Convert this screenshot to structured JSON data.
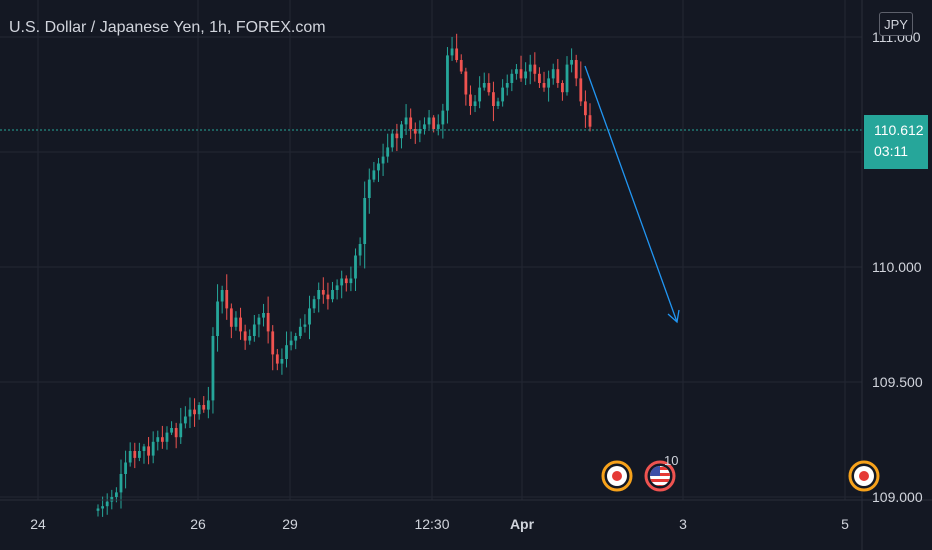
{
  "header": {
    "title": "U.S. Dollar / Japanese Yen, 1h, FOREX.com",
    "currency": "JPY"
  },
  "price_tag": {
    "price": "110.612",
    "countdown": "03:11"
  },
  "colors": {
    "background": "#141823",
    "grid": "#232733",
    "up": "#26a69a",
    "down": "#ef5350",
    "arrow": "#2196f3",
    "price_line": "#26a69a",
    "event_ring": "#f7a21b",
    "event_ring_us": "#ef5350"
  },
  "events": {
    "us_event_count": "10",
    "icons": [
      "japan-flag-icon",
      "us-flag-icon",
      "japan-flag-icon"
    ]
  },
  "chart_data": {
    "type": "candlestick",
    "title": "U.S. Dollar / Japanese Yen, 1h, FOREX.com",
    "currency": "JPY",
    "timeframe": "1h",
    "ylim": [
      108.95,
      111.12
    ],
    "yticks": [
      109.0,
      109.5,
      110.0,
      110.5,
      111.0
    ],
    "ytick_labels": [
      "109.000",
      "109.500",
      "110.000",
      "",
      "111.000"
    ],
    "xtick_labels": [
      "24",
      "26",
      "29",
      "12:30",
      "Apr",
      "3",
      "5"
    ],
    "last_price": 110.612,
    "grid": true,
    "closes": [
      108.95,
      108.96,
      108.98,
      109.0,
      109.02,
      109.1,
      109.15,
      109.2,
      109.17,
      109.2,
      109.22,
      109.18,
      109.24,
      109.26,
      109.24,
      109.28,
      109.3,
      109.26,
      109.32,
      109.35,
      109.38,
      109.36,
      109.4,
      109.38,
      109.42,
      109.7,
      109.85,
      109.9,
      109.82,
      109.74,
      109.78,
      109.72,
      109.68,
      109.7,
      109.75,
      109.78,
      109.8,
      109.72,
      109.62,
      109.58,
      109.6,
      109.66,
      109.68,
      109.7,
      109.74,
      109.75,
      109.82,
      109.86,
      109.9,
      109.88,
      109.86,
      109.9,
      109.92,
      109.95,
      109.93,
      109.95,
      110.05,
      110.1,
      110.3,
      110.38,
      110.42,
      110.45,
      110.48,
      110.52,
      110.58,
      110.56,
      110.62,
      110.65,
      110.6,
      110.58,
      110.6,
      110.62,
      110.65,
      110.6,
      110.62,
      110.68,
      110.92,
      110.95,
      110.9,
      110.85,
      110.75,
      110.7,
      110.72,
      110.78,
      110.8,
      110.76,
      110.7,
      110.72,
      110.78,
      110.8,
      110.84,
      110.86,
      110.82,
      110.85,
      110.88,
      110.84,
      110.8,
      110.78,
      110.82,
      110.86,
      110.8,
      110.76,
      110.88,
      110.9,
      110.82,
      110.72,
      110.66,
      110.61
    ]
  },
  "annotation": {
    "type": "arrow",
    "from": {
      "date": "Apr 1",
      "price": 110.88
    },
    "to": {
      "date": "Apr 2",
      "price": 109.8
    }
  }
}
